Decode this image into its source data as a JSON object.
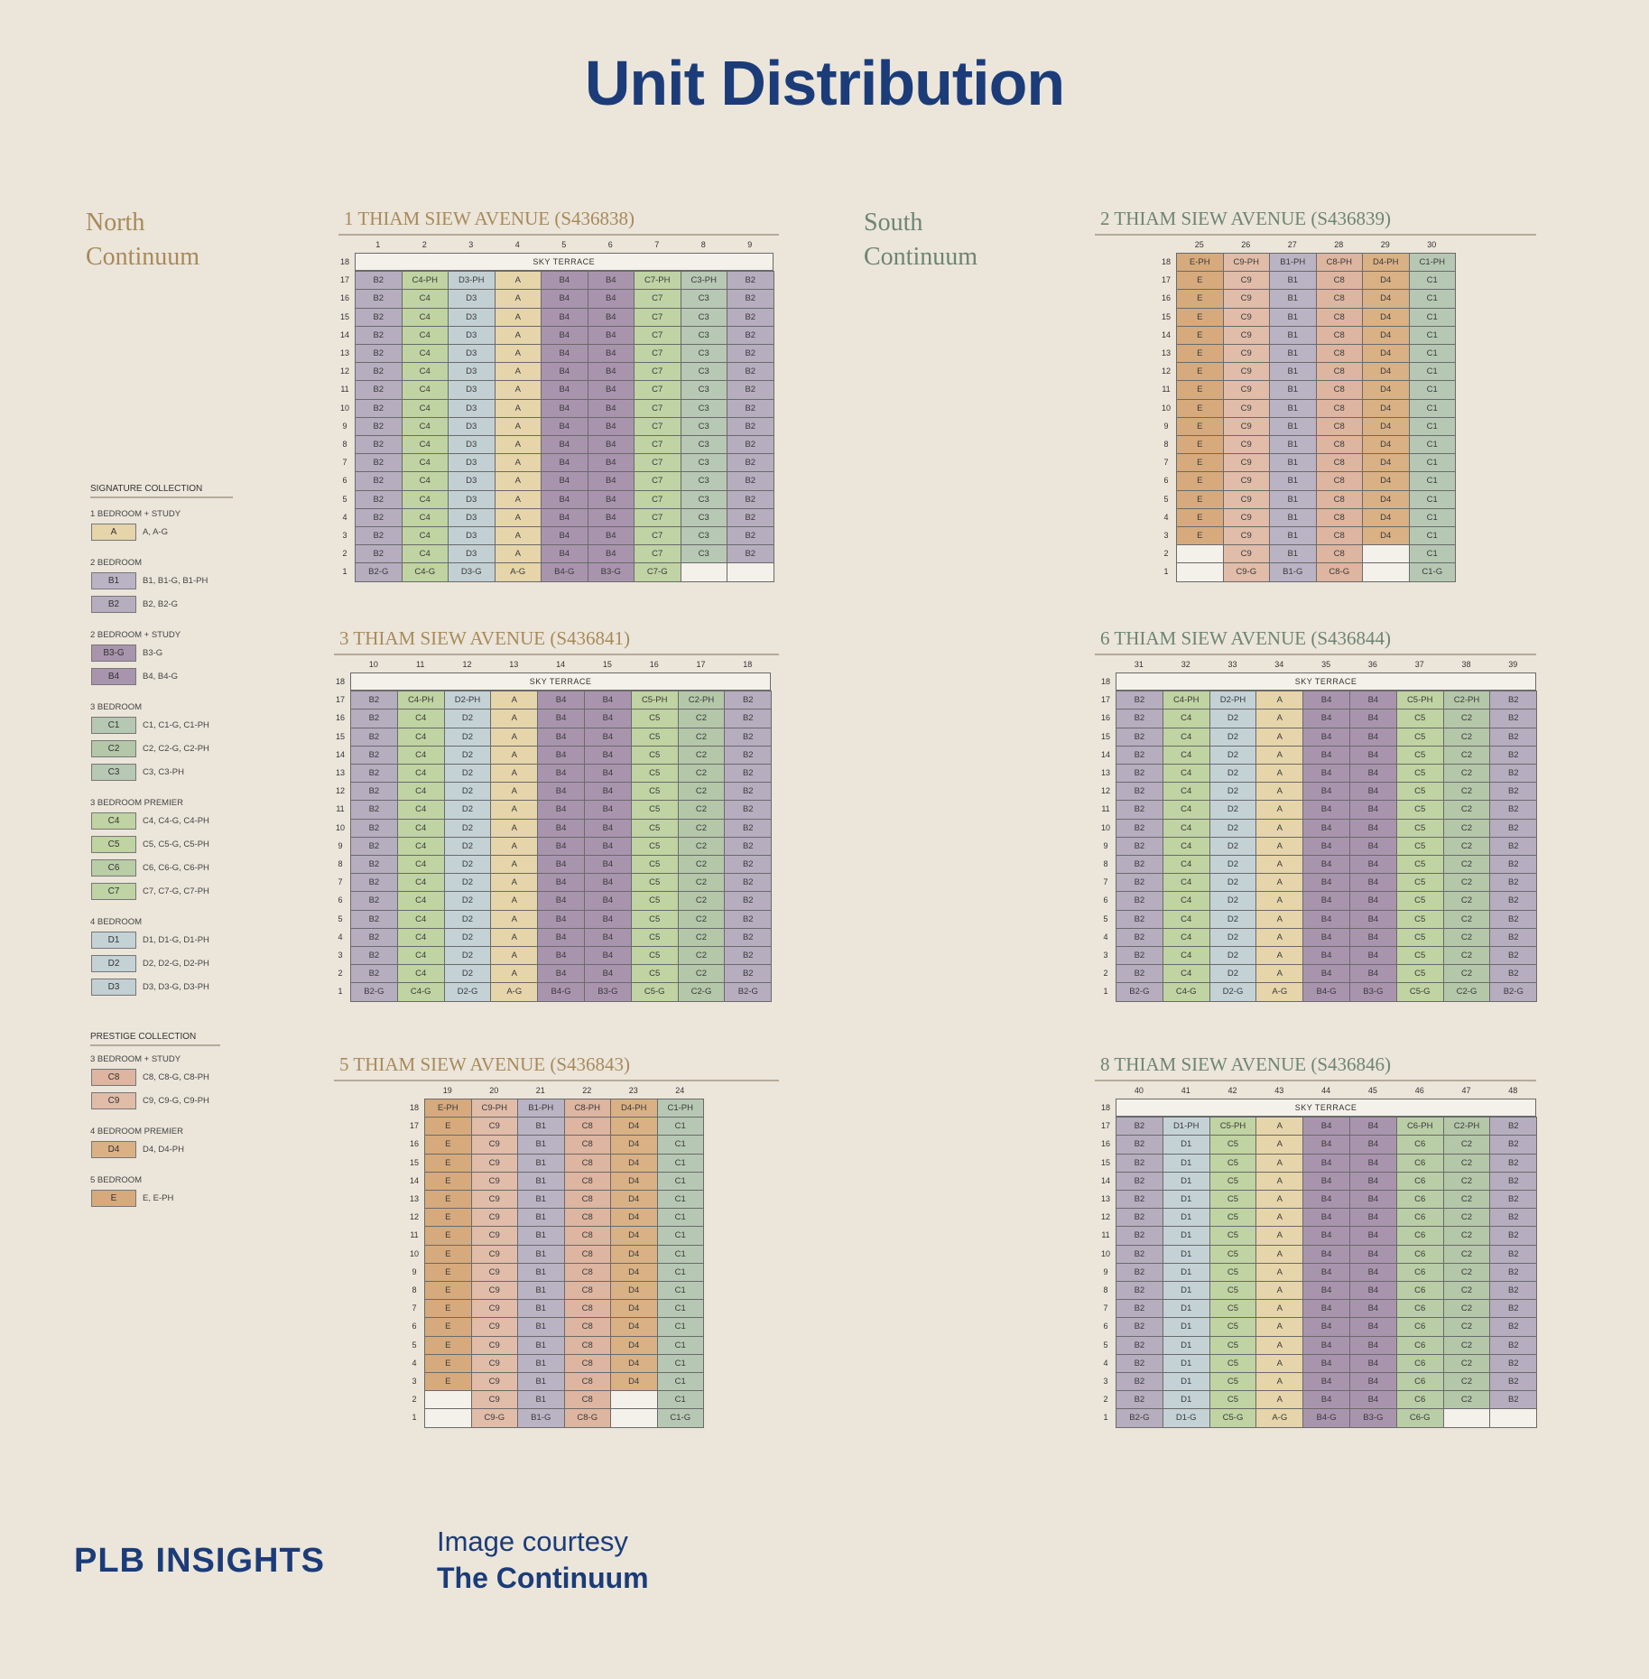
{
  "title": "Unit Distribution",
  "north_label": [
    "North",
    "Continuum"
  ],
  "south_label": [
    "South",
    "Continuum"
  ],
  "sky_terrace": "SKY TERRACE",
  "colors": {
    "A": "#e6d5aa",
    "B1": "#bab3c4",
    "B2": "#b6adbf",
    "B3": "#a994ae",
    "B4": "#a994ae",
    "C1": "#b6c8b3",
    "C2": "#b4c7a9",
    "C3": "#b7c8b4",
    "C4": "#c0d3a2",
    "C5": "#c0d3a2",
    "C6": "#b9cda6",
    "C7": "#bfd3a5",
    "C8": "#ddb5a0",
    "C9": "#e0bca9",
    "D1": "#c4d2d6",
    "D2": "#c4d2d6",
    "D3": "#c3d0d3",
    "D4": "#d9b185",
    "E": "#d6aa7d",
    "blank": "#f4f1ea"
  },
  "legend": {
    "signature_heading": "SIGNATURE COLLECTION",
    "prestige_heading": "PRESTIGE COLLECTION",
    "signature": [
      {
        "group": "1 BEDROOM + STUDY",
        "items": [
          {
            "code": "A",
            "desc": "A, A-G"
          }
        ]
      },
      {
        "group": "2 BEDROOM",
        "items": [
          {
            "code": "B1",
            "desc": "B1, B1-G, B1-PH"
          },
          {
            "code": "B2",
            "desc": "B2, B2-G"
          }
        ]
      },
      {
        "group": "2 BEDROOM + STUDY",
        "items": [
          {
            "code": "B3-G",
            "desc": "B3-G"
          },
          {
            "code": "B4",
            "desc": "B4, B4-G"
          }
        ]
      },
      {
        "group": "3 BEDROOM",
        "items": [
          {
            "code": "C1",
            "desc": "C1, C1-G, C1-PH"
          },
          {
            "code": "C2",
            "desc": "C2, C2-G, C2-PH"
          },
          {
            "code": "C3",
            "desc": "C3, C3-PH"
          }
        ]
      },
      {
        "group": "3 BEDROOM PREMIER",
        "items": [
          {
            "code": "C4",
            "desc": "C4, C4-G, C4-PH"
          },
          {
            "code": "C5",
            "desc": "C5, C5-G, C5-PH"
          },
          {
            "code": "C6",
            "desc": "C6, C6-G, C6-PH"
          },
          {
            "code": "C7",
            "desc": "C7, C7-G, C7-PH"
          }
        ]
      },
      {
        "group": "4 BEDROOM",
        "items": [
          {
            "code": "D1",
            "desc": "D1, D1-G, D1-PH"
          },
          {
            "code": "D2",
            "desc": "D2, D2-G, D2-PH"
          },
          {
            "code": "D3",
            "desc": "D3, D3-G, D3-PH"
          }
        ]
      }
    ],
    "prestige": [
      {
        "group": "3 BEDROOM + STUDY",
        "items": [
          {
            "code": "C8",
            "desc": "C8, C8-G, C8-PH"
          },
          {
            "code": "C9",
            "desc": "C9, C9-G, C9-PH"
          }
        ]
      },
      {
        "group": "4 BEDROOM PREMIER",
        "items": [
          {
            "code": "D4",
            "desc": "D4, D4-PH"
          }
        ]
      },
      {
        "group": "5 BEDROOM",
        "items": [
          {
            "code": "E",
            "desc": "E, E-PH"
          }
        ]
      }
    ]
  },
  "buildings": [
    {
      "id": "b1",
      "name": "1 THIAM SIEW AVENUE (S436838)",
      "side": "north",
      "sky": true,
      "cols": [
        "1",
        "2",
        "3",
        "4",
        "5",
        "6",
        "7",
        "8",
        "9"
      ],
      "top": [
        "B2",
        "C4-PH",
        "D3-PH",
        "A",
        "B4",
        "B4",
        "C7-PH",
        "C3-PH",
        "B2"
      ],
      "mid": [
        "B2",
        "C4",
        "D3",
        "A",
        "B4",
        "B4",
        "C7",
        "C3",
        "B2"
      ],
      "mid2": null,
      "ground": [
        "B2-G",
        "C4-G",
        "D3-G",
        "A-G",
        "B4-G",
        "B3-G",
        "C7-G",
        "",
        ""
      ]
    },
    {
      "id": "b3",
      "name": "3 THIAM SIEW AVENUE (S436841)",
      "side": "north",
      "sky": true,
      "cols": [
        "10",
        "11",
        "12",
        "13",
        "14",
        "15",
        "16",
        "17",
        "18"
      ],
      "top": [
        "B2",
        "C4-PH",
        "D2-PH",
        "A",
        "B4",
        "B4",
        "C5-PH",
        "C2-PH",
        "B2"
      ],
      "mid": [
        "B2",
        "C4",
        "D2",
        "A",
        "B4",
        "B4",
        "C5",
        "C2",
        "B2"
      ],
      "mid2": null,
      "ground": [
        "B2-G",
        "C4-G",
        "D2-G",
        "A-G",
        "B4-G",
        "B3-G",
        "C5-G",
        "C2-G",
        "B2-G"
      ]
    },
    {
      "id": "b5",
      "name": "5 THIAM SIEW AVENUE (S436843)",
      "side": "north",
      "sky": false,
      "cols": [
        "19",
        "20",
        "21",
        "22",
        "23",
        "24"
      ],
      "top": [
        "E-PH",
        "C9-PH",
        "B1-PH",
        "C8-PH",
        "D4-PH",
        "C1-PH"
      ],
      "mid": [
        "E",
        "C9",
        "B1",
        "C8",
        "D4",
        "C1"
      ],
      "mid2": [
        "",
        "C9",
        "B1",
        "C8",
        "",
        "C1"
      ],
      "ground": [
        "",
        "C9-G",
        "B1-G",
        "C8-G",
        "",
        "C1-G"
      ]
    },
    {
      "id": "b2",
      "name": "2 THIAM SIEW AVENUE (S436839)",
      "side": "south",
      "sky": false,
      "cols": [
        "25",
        "26",
        "27",
        "28",
        "29",
        "30"
      ],
      "top": [
        "E-PH",
        "C9-PH",
        "B1-PH",
        "C8-PH",
        "D4-PH",
        "C1-PH"
      ],
      "mid": [
        "E",
        "C9",
        "B1",
        "C8",
        "D4",
        "C1"
      ],
      "mid2": [
        "",
        "C9",
        "B1",
        "C8",
        "",
        "C1"
      ],
      "ground": [
        "",
        "C9-G",
        "B1-G",
        "C8-G",
        "",
        "C1-G"
      ]
    },
    {
      "id": "b6",
      "name": "6 THIAM SIEW AVENUE (S436844)",
      "side": "south",
      "sky": true,
      "cols": [
        "31",
        "32",
        "33",
        "34",
        "35",
        "36",
        "37",
        "38",
        "39"
      ],
      "top": [
        "B2",
        "C4-PH",
        "D2-PH",
        "A",
        "B4",
        "B4",
        "C5-PH",
        "C2-PH",
        "B2"
      ],
      "mid": [
        "B2",
        "C4",
        "D2",
        "A",
        "B4",
        "B4",
        "C5",
        "C2",
        "B2"
      ],
      "mid2": null,
      "ground": [
        "B2-G",
        "C4-G",
        "D2-G",
        "A-G",
        "B4-G",
        "B3-G",
        "C5-G",
        "C2-G",
        "B2-G"
      ]
    },
    {
      "id": "b8",
      "name": "8 THIAM SIEW AVENUE (S436846)",
      "side": "south",
      "sky": true,
      "cols": [
        "40",
        "41",
        "42",
        "43",
        "44",
        "45",
        "46",
        "47",
        "48"
      ],
      "top": [
        "B2",
        "D1-PH",
        "C5-PH",
        "A",
        "B4",
        "B4",
        "C6-PH",
        "C2-PH",
        "B2"
      ],
      "mid": [
        "B2",
        "D1",
        "C5",
        "A",
        "B4",
        "B4",
        "C6",
        "C2",
        "B2"
      ],
      "mid2": null,
      "ground": [
        "B2-G",
        "D1-G",
        "C5-G",
        "A-G",
        "B4-G",
        "B3-G",
        "C6-G",
        "",
        ""
      ]
    }
  ],
  "footer": {
    "logo": "PLB INSIGHTS",
    "credit_line1": "Image courtesy",
    "credit_line2": "The Continuum"
  }
}
